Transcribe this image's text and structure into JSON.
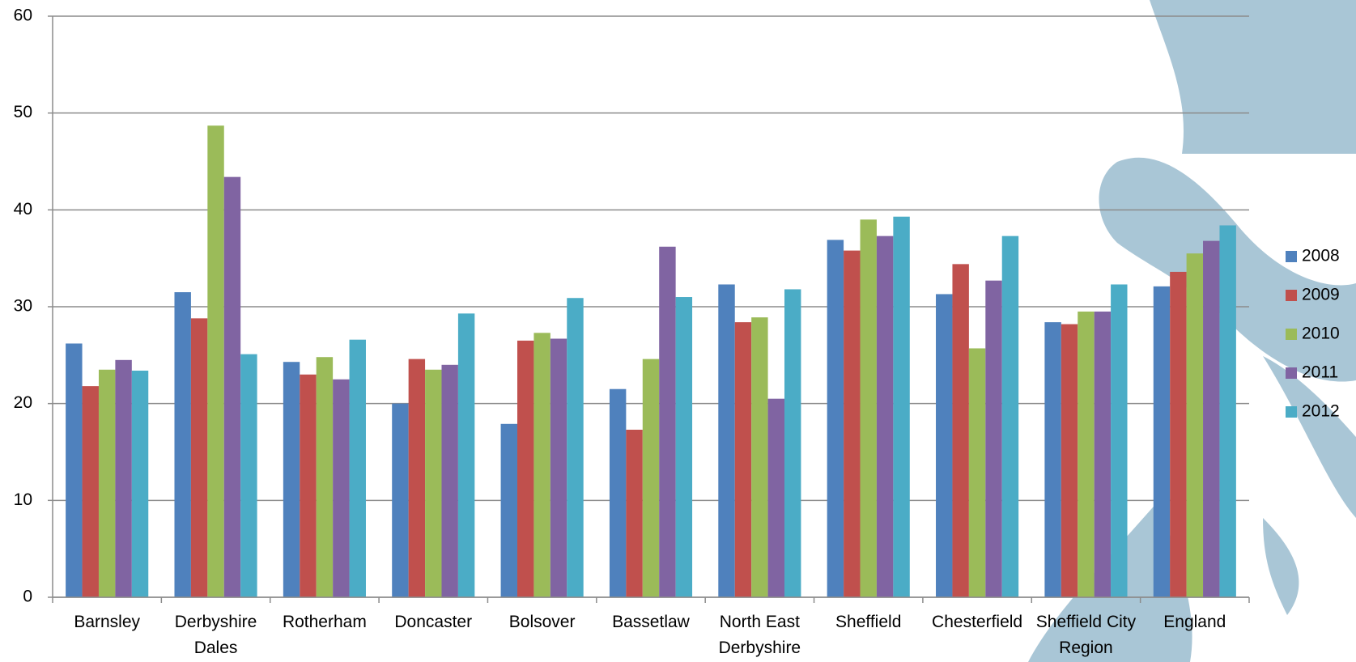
{
  "chart_data": {
    "type": "bar",
    "categories": [
      "Barnsley",
      "Derbyshire Dales",
      "Rotherham",
      "Doncaster",
      "Bolsover",
      "Bassetlaw",
      "North East Derbyshire",
      "Sheffield",
      "Chesterfield",
      "Sheffield City Region",
      "England"
    ],
    "series": [
      {
        "name": "2008",
        "color": "#4f81bd",
        "values": [
          26.2,
          31.5,
          24.3,
          20.0,
          17.9,
          21.5,
          32.3,
          36.9,
          31.3,
          28.4,
          32.1
        ]
      },
      {
        "name": "2009",
        "color": "#c0504d",
        "values": [
          21.8,
          28.8,
          23.0,
          24.6,
          26.5,
          17.3,
          28.4,
          35.8,
          34.4,
          28.2,
          33.6
        ]
      },
      {
        "name": "2010",
        "color": "#9bbb59",
        "values": [
          23.5,
          48.7,
          24.8,
          23.5,
          27.3,
          24.6,
          28.9,
          39.0,
          25.7,
          29.5,
          35.5
        ]
      },
      {
        "name": "2011",
        "color": "#8064a2",
        "values": [
          24.5,
          43.4,
          22.5,
          24.0,
          26.7,
          36.2,
          20.5,
          37.3,
          32.7,
          29.5,
          36.8
        ]
      },
      {
        "name": "2012",
        "color": "#4bacc6",
        "values": [
          23.4,
          25.1,
          26.6,
          29.3,
          30.9,
          31.0,
          31.8,
          39.3,
          37.3,
          32.3,
          38.4
        ]
      }
    ],
    "ylim": [
      0,
      60
    ],
    "yticks": [
      0,
      10,
      20,
      30,
      40,
      50,
      60
    ],
    "grid": true,
    "legend": "right"
  }
}
